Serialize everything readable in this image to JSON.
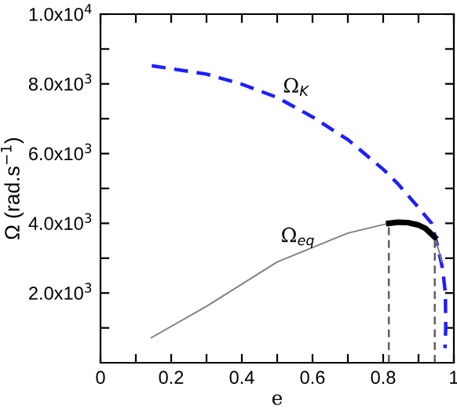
{
  "chart_data": {
    "type": "line",
    "xlabel": "e",
    "ylabel": "Ω (rad.s$^{−1}$)",
    "xlim": [
      0,
      1
    ],
    "ylim": [
      0,
      10000
    ],
    "xticks": [
      0,
      {
        "value": 0.1,
        "label": null
      },
      0.2,
      {
        "value": 0.3,
        "label": null
      },
      0.4,
      {
        "value": 0.5,
        "label": null
      },
      0.6,
      {
        "value": 0.7,
        "label": null
      },
      0.8,
      {
        "value": 0.9,
        "label": null
      },
      1
    ],
    "yticks": [
      {
        "value": 1000,
        "label": null
      },
      {
        "value": 2000,
        "label": "2.0x10$^{3}$"
      },
      {
        "value": 3000,
        "label": null
      },
      {
        "value": 4000,
        "label": "4.0x10$^{3}$"
      },
      {
        "value": 5000,
        "label": null
      },
      {
        "value": 6000,
        "label": "6.0x10$^{3}$"
      },
      {
        "value": 7000,
        "label": null
      },
      {
        "value": 8000,
        "label": "8.0x10$^{3}$"
      },
      {
        "value": 9000,
        "label": null
      },
      {
        "value": 10000,
        "label": "1.0x10$^{4}$"
      }
    ],
    "grid": false,
    "legend": false,
    "marker": "none",
    "series": [
      {
        "name": "Ω$_{K}$",
        "color": "#1f1fff",
        "line_style": "dashed",
        "x": [
          0.145,
          0.3,
          0.4,
          0.5,
          0.6,
          0.7,
          0.8,
          0.84,
          0.87,
          0.9,
          0.937,
          0.955,
          0.968,
          0.976,
          0.977,
          0.975
        ],
        "values": [
          8520,
          8280,
          7990,
          7610,
          7050,
          6400,
          5550,
          5150,
          4800,
          4450,
          4000,
          3300,
          2700,
          2000,
          1000,
          420
        ]
      },
      {
        "name": "Ω$_{eq}$",
        "color": "#808080",
        "line_style": "solid",
        "x": [
          0.144,
          0.3,
          0.5,
          0.7,
          0.816,
          0.87,
          0.92,
          0.946,
          0.958,
          0.966
        ],
        "values": [
          720,
          1620,
          2890,
          3720,
          4000,
          4020,
          3850,
          3600,
          3200,
          2900
        ]
      },
      {
        "color": "#000000",
        "line_style": "solid",
        "x": [
          0.816,
          0.84,
          0.87,
          0.9,
          0.92,
          0.946
        ],
        "values": [
          4000,
          4030,
          4020,
          3950,
          3850,
          3600
        ]
      },
      {
        "color": "#606060",
        "line_style": "dashed",
        "x": [
          0.816,
          0.816
        ],
        "values": [
          0,
          4000
        ]
      },
      {
        "color": "#606060",
        "line_style": "dashed",
        "x": [
          0.946,
          0.946
        ],
        "values": [
          0,
          3600
        ]
      }
    ]
  }
}
